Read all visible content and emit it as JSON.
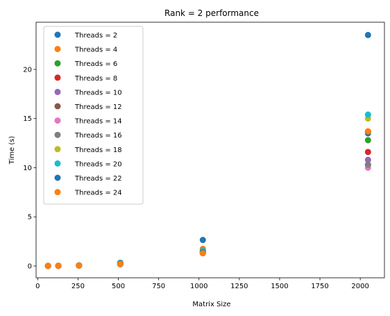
{
  "chart_data": {
    "type": "scatter",
    "title": "Rank = 2 performance",
    "xlabel": "Matrix Size",
    "ylabel": "Time (s)",
    "xlim": [
      -10,
      2150
    ],
    "ylim": [
      -1.2,
      24.8
    ],
    "xticks": [
      0,
      250,
      500,
      750,
      1000,
      1250,
      1500,
      1750,
      2000
    ],
    "yticks": [
      0,
      5,
      10,
      15,
      20
    ],
    "x": [
      64,
      128,
      256,
      512,
      1024,
      2048
    ],
    "legend_position": "upper-left",
    "grid": false,
    "series": [
      {
        "name": "Threads = 2",
        "color": "#1f77b4",
        "values": [
          0.01,
          0.02,
          0.06,
          0.32,
          2.65,
          23.5
        ]
      },
      {
        "name": "Threads = 4",
        "color": "#ff7f0e",
        "values": [
          0.01,
          0.02,
          0.05,
          0.22,
          1.75,
          13.7
        ]
      },
      {
        "name": "Threads = 6",
        "color": "#2ca02c",
        "values": [
          0.01,
          0.02,
          0.05,
          0.2,
          1.55,
          12.8
        ]
      },
      {
        "name": "Threads = 8",
        "color": "#d62728",
        "values": [
          0.01,
          0.02,
          0.05,
          0.19,
          1.45,
          11.6
        ]
      },
      {
        "name": "Threads = 10",
        "color": "#9467bd",
        "values": [
          0.01,
          0.02,
          0.05,
          0.19,
          1.4,
          10.8
        ]
      },
      {
        "name": "Threads = 12",
        "color": "#8c564b",
        "values": [
          0.01,
          0.02,
          0.05,
          0.19,
          1.35,
          10.3
        ]
      },
      {
        "name": "Threads = 14",
        "color": "#e377c2",
        "values": [
          0.01,
          0.02,
          0.05,
          0.19,
          1.3,
          10.0
        ]
      },
      {
        "name": "Threads = 16",
        "color": "#7f7f7f",
        "values": [
          0.01,
          0.02,
          0.05,
          0.19,
          1.3,
          10.3
        ]
      },
      {
        "name": "Threads = 18",
        "color": "#bcbd22",
        "values": [
          0.01,
          0.02,
          0.06,
          0.25,
          1.45,
          15.0
        ]
      },
      {
        "name": "Threads = 20",
        "color": "#17becf",
        "values": [
          0.01,
          0.02,
          0.06,
          0.33,
          1.55,
          15.4
        ]
      },
      {
        "name": "Threads = 22",
        "color": "#1f77b4",
        "values": [
          0.01,
          0.02,
          0.06,
          0.28,
          1.4,
          13.5
        ]
      },
      {
        "name": "Threads = 24",
        "color": "#ff7f0e",
        "values": [
          0.01,
          0.02,
          0.05,
          0.21,
          1.3,
          13.7
        ]
      }
    ]
  }
}
